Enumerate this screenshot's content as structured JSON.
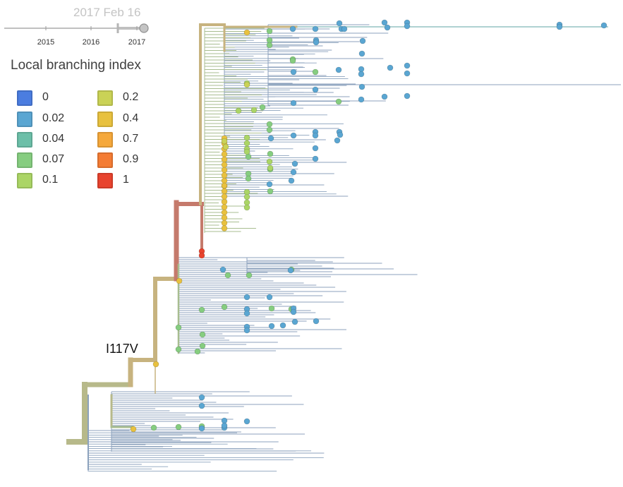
{
  "timeline": {
    "date_readout": "2017 Feb 16",
    "ticks": [
      "2015",
      "2016",
      "2017"
    ]
  },
  "legend": {
    "title": "Local branching index",
    "items": [
      {
        "label": "0",
        "color": "#4b7de0"
      },
      {
        "label": "0.02",
        "color": "#5aa6d2"
      },
      {
        "label": "0.04",
        "color": "#6cbfa8"
      },
      {
        "label": "0.07",
        "color": "#86cd80"
      },
      {
        "label": "0.1",
        "color": "#abd566"
      },
      {
        "label": "0.2",
        "color": "#cad256"
      },
      {
        "label": "0.4",
        "color": "#e8c13f"
      },
      {
        "label": "0.7",
        "color": "#f5a83b"
      },
      {
        "label": "0.9",
        "color": "#f47c34"
      },
      {
        "label": "1",
        "color": "#e8432e"
      }
    ]
  },
  "tree": {
    "branch_label": "I117V",
    "colors": {
      "trunk": "#b7b98a",
      "upper_clade": "#c7b37f",
      "red_branch": "#c57a6c",
      "leaf": "#8ca2bd",
      "leaf_green": "#a8bd90"
    }
  }
}
